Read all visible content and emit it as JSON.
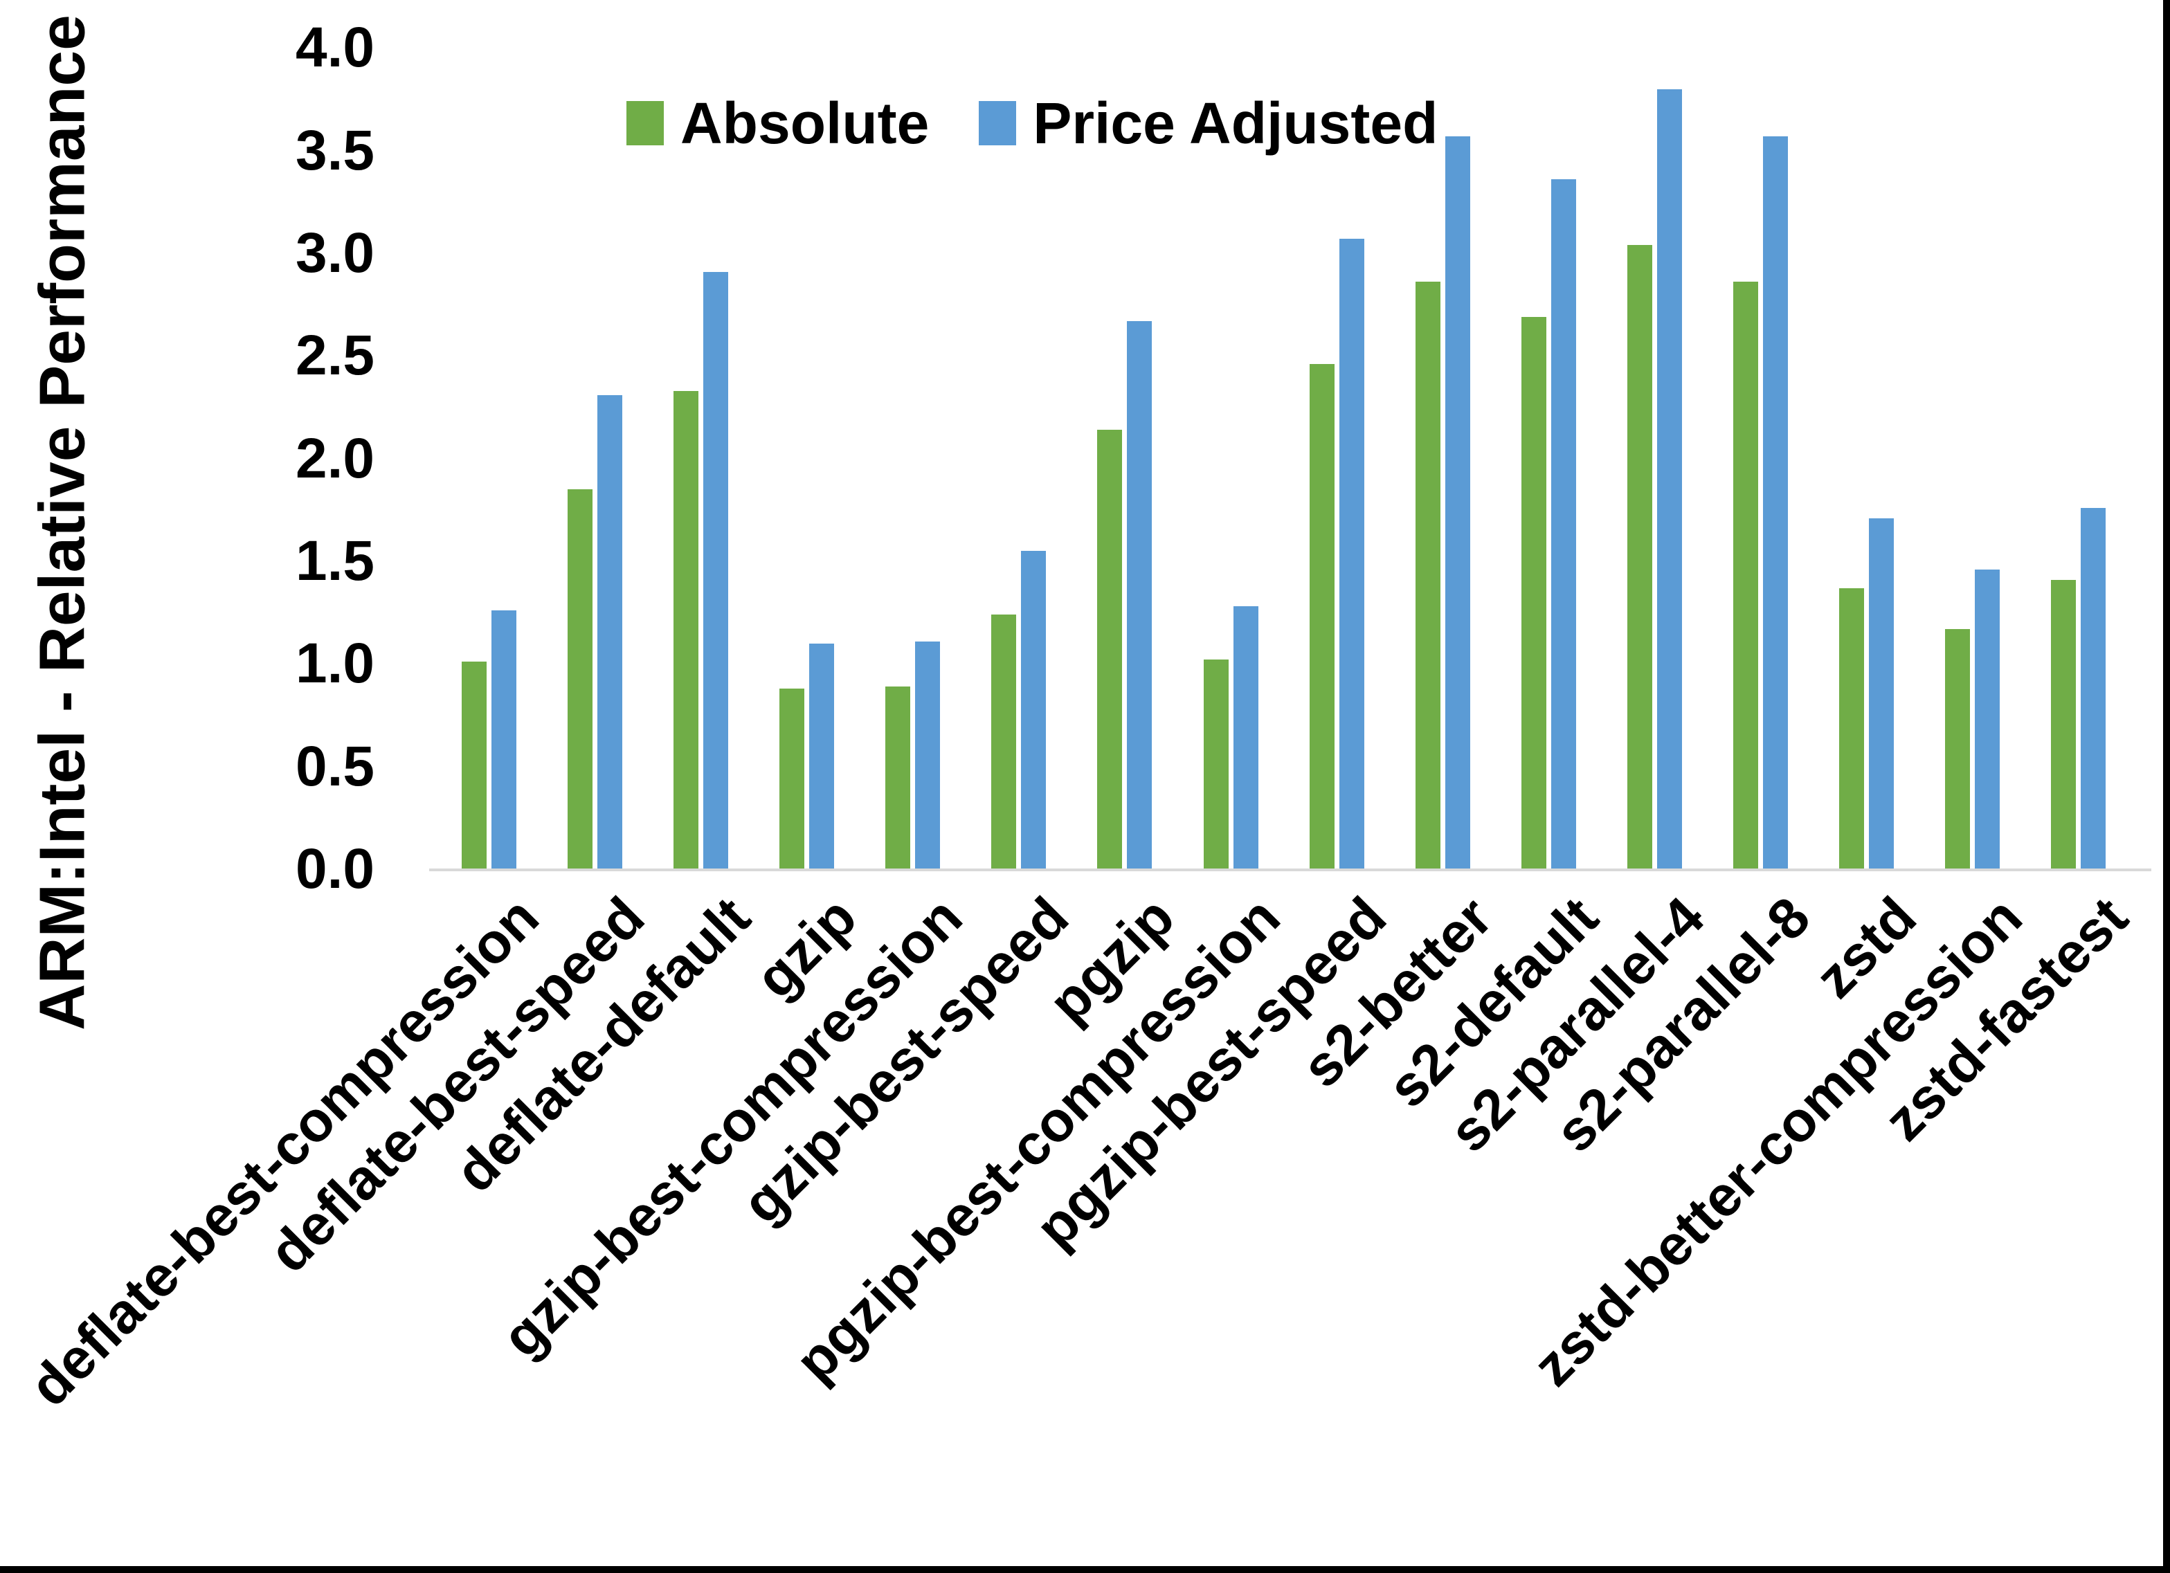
{
  "chart_data": {
    "type": "bar",
    "title": "",
    "ylabel": "ARM:Intel - Relative Performance",
    "xlabel": "",
    "ylim": [
      0.0,
      4.0
    ],
    "ytick_labels": [
      "0.0",
      "0.5",
      "1.0",
      "1.5",
      "2.0",
      "2.5",
      "3.0",
      "3.5",
      "4.0"
    ],
    "grid": false,
    "legend_position": "top-center",
    "categories": [
      "deflate-best-compression",
      "deflate-best-speed",
      "deflate-default",
      "gzip",
      "gzip-best-compression",
      "gzip-best-speed",
      "pgzip",
      "pgzip-best-compression",
      "pgzip-best-speed",
      "s2-better",
      "s2-default",
      "s2-parallel-4",
      "s2-parallel-8",
      "zstd",
      "zstd-better-compression",
      "zstd-fastest"
    ],
    "series": [
      {
        "name": "Absolute",
        "color": "#70AD47",
        "values": [
          1.01,
          1.85,
          2.33,
          0.88,
          0.89,
          1.24,
          2.14,
          1.02,
          2.46,
          2.86,
          2.69,
          3.04,
          2.86,
          1.37,
          1.17,
          1.41
        ]
      },
      {
        "name": "Price Adjusted",
        "color": "#5B9BD5",
        "values": [
          1.26,
          2.31,
          2.91,
          1.1,
          1.11,
          1.55,
          2.67,
          1.28,
          3.07,
          3.57,
          3.36,
          3.8,
          3.57,
          1.71,
          1.46,
          1.76
        ]
      }
    ],
    "axis_line_color": "#D9D9D9",
    "text_color": "#000000",
    "frame_border_color": "#000000"
  }
}
